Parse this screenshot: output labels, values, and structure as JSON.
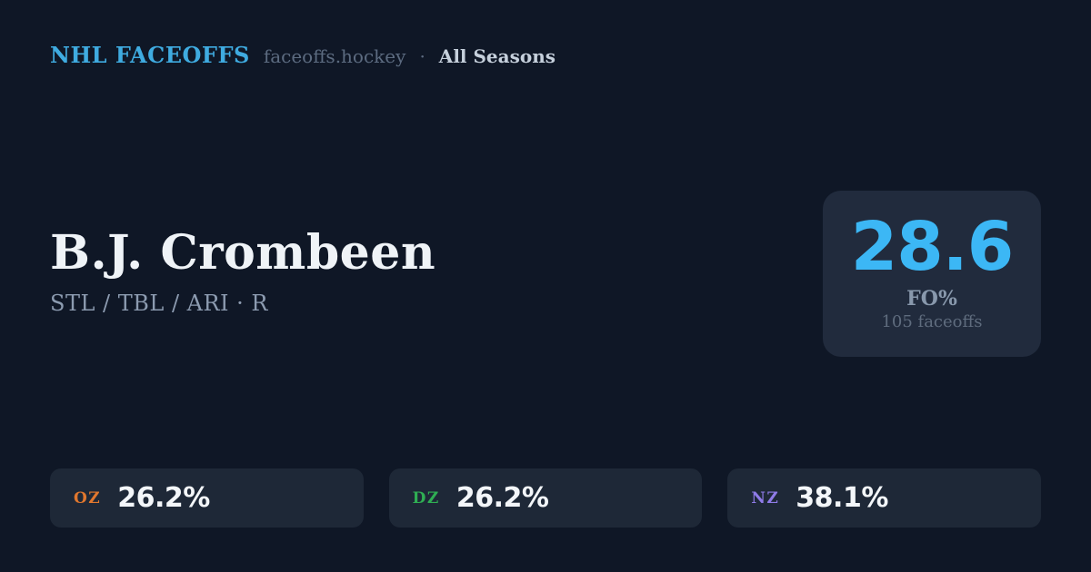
{
  "header": {
    "brand": "NHL FACEOFFS",
    "domain": "faceoffs.hockey",
    "separator": "·",
    "season": "All Seasons"
  },
  "player": {
    "name": "B.J. Crombeen",
    "teams": "STL / TBL / ARI · R"
  },
  "summary": {
    "value": "28.6",
    "label": "FO%",
    "sublabel": "105 faceoffs"
  },
  "zones": [
    {
      "code": "OZ",
      "value": "26.2%",
      "color": "#E0772E"
    },
    {
      "code": "DZ",
      "value": "26.2%",
      "color": "#2FAE53"
    },
    {
      "code": "NZ",
      "value": "38.1%",
      "color": "#8F7BE8"
    }
  ],
  "colors": {
    "background": "#0F1726",
    "card_background": "#212B3D",
    "pill_background": "#1E2837",
    "accent_blue": "#3CB7F5",
    "brand_blue": "#3FABE0",
    "text_primary": "#EFF3F7",
    "text_secondary": "#8C9BB0",
    "text_muted": "#5F6C7E"
  }
}
